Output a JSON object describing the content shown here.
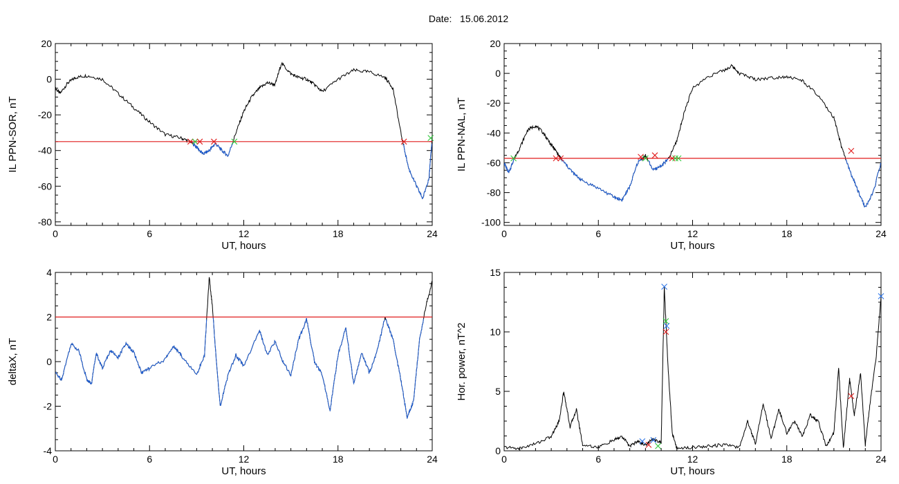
{
  "header": {
    "label": "Date:",
    "value": "15.06.2012"
  },
  "colors": {
    "trace": "#000000",
    "below_threshold": "#1f5fd6",
    "threshold": "#e01b1b",
    "marker_red": "#e01b1b",
    "marker_green": "#2ec93a",
    "marker_blue": "#2b74e8"
  },
  "chart_data": [
    {
      "id": "sor",
      "type": "line",
      "xlabel": "UT, hours",
      "ylabel": "IL PPN-SOR, nT",
      "xlim": [
        0,
        24
      ],
      "ylim": [
        -82,
        20
      ],
      "xticks": [
        "0",
        "6",
        "12",
        "18",
        "24"
      ],
      "yticks": [
        20,
        0,
        -20,
        -40,
        -60,
        -80
      ],
      "threshold": -35,
      "grid": false,
      "series": [
        {
          "x": [
            0,
            0.3,
            0.8,
            1.3,
            2,
            3,
            4,
            5,
            6,
            7,
            8,
            8.6,
            9,
            9.4,
            9.8,
            10.2,
            10.6,
            11,
            11.5,
            12,
            12.5,
            13,
            13.5,
            14,
            14.4,
            15,
            15.5,
            16,
            16.5,
            17,
            18,
            19,
            20,
            21,
            21.5,
            22,
            22.5,
            23,
            23.4,
            23.8,
            24
          ],
          "y": [
            -5,
            -8,
            -2,
            1,
            2,
            0,
            -8,
            -16,
            -24,
            -31,
            -33,
            -35,
            -38,
            -42,
            -40,
            -36,
            -40,
            -43,
            -30,
            -18,
            -10,
            -5,
            -2,
            -3,
            9,
            3,
            1,
            0,
            -3,
            -7,
            0,
            5,
            4,
            1,
            -5,
            -30,
            -50,
            -60,
            -67,
            -55,
            -33
          ]
        }
      ],
      "markers": [
        {
          "x": 8.6,
          "y": -35,
          "color": "red"
        },
        {
          "x": 8.9,
          "y": -35,
          "color": "green"
        },
        {
          "x": 9.2,
          "y": -35,
          "color": "red"
        },
        {
          "x": 10.1,
          "y": -35,
          "color": "red"
        },
        {
          "x": 11.4,
          "y": -35,
          "color": "green"
        },
        {
          "x": 22.2,
          "y": -35,
          "color": "red"
        },
        {
          "x": 23.9,
          "y": -33,
          "color": "green"
        }
      ]
    },
    {
      "id": "nal",
      "type": "line",
      "xlabel": "UT, hours",
      "ylabel": "IL PPN-NAL, nT",
      "xlim": [
        0,
        24
      ],
      "ylim": [
        -102,
        20
      ],
      "xticks": [
        "0",
        "6",
        "12",
        "18",
        "24"
      ],
      "yticks": [
        20,
        0,
        -20,
        -40,
        -60,
        -80,
        -100
      ],
      "threshold": -57,
      "grid": false,
      "series": [
        {
          "x": [
            0,
            0.3,
            0.6,
            1,
            1.5,
            2,
            2.5,
            3,
            3.3,
            3.6,
            4,
            4.5,
            5,
            6,
            7,
            7.5,
            8,
            8.5,
            9,
            9.5,
            10,
            10.5,
            11,
            11.5,
            12,
            13,
            14,
            14.5,
            15,
            16,
            17,
            18,
            19,
            20,
            21,
            21.5,
            22,
            22.5,
            23,
            23.5,
            24
          ],
          "y": [
            -60,
            -67,
            -58,
            -50,
            -38,
            -35,
            -40,
            -48,
            -52,
            -57,
            -62,
            -68,
            -72,
            -77,
            -83,
            -85,
            -76,
            -60,
            -55,
            -65,
            -62,
            -57,
            -45,
            -25,
            -10,
            -2,
            2,
            5,
            0,
            -4,
            -3,
            -2,
            -5,
            -15,
            -30,
            -50,
            -65,
            -78,
            -90,
            -80,
            -60
          ]
        }
      ],
      "markers": [
        {
          "x": 0.6,
          "y": -57,
          "color": "green"
        },
        {
          "x": 3.3,
          "y": -57,
          "color": "red"
        },
        {
          "x": 3.6,
          "y": -57,
          "color": "red"
        },
        {
          "x": 8.7,
          "y": -56,
          "color": "red"
        },
        {
          "x": 9.0,
          "y": -57,
          "color": "green"
        },
        {
          "x": 9.6,
          "y": -55,
          "color": "red"
        },
        {
          "x": 10.7,
          "y": -57,
          "color": "red"
        },
        {
          "x": 10.9,
          "y": -57,
          "color": "green"
        },
        {
          "x": 11.1,
          "y": -57,
          "color": "green"
        },
        {
          "x": 22.1,
          "y": -52,
          "color": "red"
        }
      ]
    },
    {
      "id": "deltax",
      "type": "line",
      "xlabel": "UT, hours",
      "ylabel": "deltaX, nT",
      "xlim": [
        0,
        24
      ],
      "ylim": [
        -4,
        4
      ],
      "xticks": [
        "0",
        "6",
        "12",
        "18",
        "24"
      ],
      "yticks": [
        4,
        2,
        0,
        -2,
        -4
      ],
      "threshold": 2,
      "grid": false,
      "series": [
        {
          "x": [
            0,
            0.4,
            1,
            1.5,
            2,
            2.3,
            2.6,
            3,
            3.5,
            4,
            4.5,
            5,
            5.5,
            6,
            7,
            7.5,
            8,
            9,
            9.5,
            9.8,
            10,
            10.2,
            10.5,
            11,
            11.5,
            12,
            13,
            13.5,
            14,
            14.5,
            15,
            15.5,
            16,
            16.5,
            17,
            17.5,
            18,
            18.5,
            19,
            19.5,
            20,
            20.5,
            21,
            21.5,
            22,
            22.4,
            22.8,
            23.2,
            23.6,
            24
          ],
          "y": [
            -0.5,
            -0.8,
            0.8,
            0.5,
            -0.8,
            -1.0,
            0.4,
            -0.3,
            0.5,
            0.2,
            0.8,
            0.4,
            -0.5,
            -0.3,
            0.1,
            0.7,
            0.3,
            -0.6,
            0.3,
            3.8,
            2.5,
            0.5,
            -2.0,
            -0.6,
            0.3,
            -0.2,
            1.4,
            0.3,
            0.9,
            0.0,
            -0.6,
            1.0,
            1.9,
            0.0,
            -0.6,
            -2.2,
            0.3,
            1.5,
            -1.0,
            0.4,
            -0.5,
            0.5,
            2.0,
            1.0,
            -0.8,
            -2.5,
            -1.8,
            1.0,
            2.5,
            3.6
          ]
        }
      ],
      "markers": []
    },
    {
      "id": "power",
      "type": "line",
      "xlabel": "UT, hours",
      "ylabel": "Hor. power, nT^2",
      "xlim": [
        0,
        24
      ],
      "ylim": [
        0,
        15
      ],
      "xticks": [
        "0",
        "6",
        "12",
        "18",
        "24"
      ],
      "yticks": [
        15,
        10,
        5,
        0
      ],
      "threshold": null,
      "grid": false,
      "series": [
        {
          "x": [
            0,
            1,
            2,
            3,
            3.5,
            3.8,
            4.2,
            4.6,
            5,
            6,
            7,
            7.5,
            8,
            8.5,
            9,
            9.5,
            10,
            10.2,
            10.4,
            10.7,
            11,
            12,
            13,
            14,
            15,
            15.5,
            16,
            16.5,
            17,
            17.5,
            18,
            18.5,
            19,
            19.5,
            20,
            20.5,
            21,
            21.3,
            21.6,
            22,
            22.3,
            22.7,
            23,
            23.3,
            23.7,
            24
          ],
          "y": [
            0.3,
            0.2,
            0.6,
            1.2,
            2.5,
            5.0,
            2.0,
            3.5,
            0.5,
            0.3,
            0.9,
            1.2,
            0.4,
            0.8,
            0.5,
            1.0,
            0.7,
            13.8,
            8.0,
            1.5,
            0.2,
            0.3,
            0.4,
            0.5,
            0.3,
            2.5,
            0.6,
            4.0,
            1.0,
            3.5,
            1.5,
            2.5,
            1.2,
            3.0,
            2.5,
            0.4,
            1.5,
            7.0,
            0.2,
            6.0,
            3.0,
            6.5,
            0.5,
            4.0,
            8.0,
            13.0
          ]
        }
      ],
      "markers": [
        {
          "x": 8.8,
          "y": 0.8,
          "color": "blue"
        },
        {
          "x": 9.2,
          "y": 0.5,
          "color": "red"
        },
        {
          "x": 9.5,
          "y": 0.9,
          "color": "blue"
        },
        {
          "x": 9.8,
          "y": 0.4,
          "color": "green"
        },
        {
          "x": 10.2,
          "y": 13.8,
          "color": "blue"
        },
        {
          "x": 10.3,
          "y": 10.9,
          "color": "green"
        },
        {
          "x": 10.35,
          "y": 10.5,
          "color": "blue"
        },
        {
          "x": 10.3,
          "y": 10.0,
          "color": "red"
        },
        {
          "x": 22.1,
          "y": 4.6,
          "color": "red"
        },
        {
          "x": 24,
          "y": 13.0,
          "color": "blue"
        }
      ]
    }
  ]
}
